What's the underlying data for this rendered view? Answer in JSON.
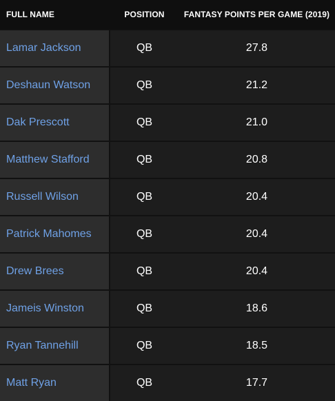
{
  "columns": {
    "name": "FULL NAME",
    "position": "POSITION",
    "points": "FANTASY POINTS PER GAME (2019)"
  },
  "rows": [
    {
      "name": "Lamar Jackson",
      "position": "QB",
      "points": "27.8"
    },
    {
      "name": "Deshaun Watson",
      "position": "QB",
      "points": "21.2"
    },
    {
      "name": "Dak Prescott",
      "position": "QB",
      "points": "21.0"
    },
    {
      "name": "Matthew Stafford",
      "position": "QB",
      "points": "20.8"
    },
    {
      "name": "Russell Wilson",
      "position": "QB",
      "points": "20.4"
    },
    {
      "name": "Patrick Mahomes",
      "position": "QB",
      "points": "20.4"
    },
    {
      "name": "Drew Brees",
      "position": "QB",
      "points": "20.4"
    },
    {
      "name": "Jameis Winston",
      "position": "QB",
      "points": "18.6"
    },
    {
      "name": "Ryan Tannehill",
      "position": "QB",
      "points": "18.5"
    },
    {
      "name": "Matt Ryan",
      "position": "QB",
      "points": "17.7"
    }
  ],
  "colors": {
    "background": "#0f0f0f",
    "name_cell": "#2d2d2d",
    "data_cell": "#1d1d1d",
    "link": "#6fa1e6",
    "text": "#ffffff"
  }
}
